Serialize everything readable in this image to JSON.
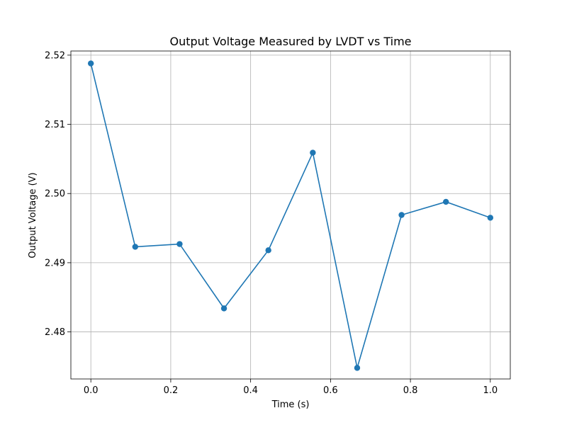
{
  "chart_data": {
    "type": "line",
    "title": "Output Voltage Measured by LVDT vs Time",
    "xlabel": "Time (s)",
    "ylabel": "Output Voltage (V)",
    "xlim": [
      -0.05,
      1.05
    ],
    "ylim": [
      2.4732,
      2.5206
    ],
    "grid": true,
    "x_ticks": [
      0.0,
      0.2,
      0.4,
      0.6,
      0.8,
      1.0
    ],
    "x_tick_labels": [
      "0.0",
      "0.2",
      "0.4",
      "0.6",
      "0.8",
      "1.0"
    ],
    "y_ticks": [
      2.48,
      2.49,
      2.5,
      2.51,
      2.52
    ],
    "y_tick_labels": [
      "2.48",
      "2.49",
      "2.50",
      "2.51",
      "2.52"
    ],
    "series": [
      {
        "color": "#1f77b4",
        "marker": "circle",
        "x": [
          0.0,
          0.1111,
          0.2222,
          0.3333,
          0.4444,
          0.5556,
          0.6667,
          0.7778,
          0.8889,
          1.0
        ],
        "y": [
          2.5188,
          2.4923,
          2.4927,
          2.4834,
          2.4918,
          2.5059,
          2.4748,
          2.4969,
          2.4988,
          2.4965
        ]
      }
    ]
  }
}
